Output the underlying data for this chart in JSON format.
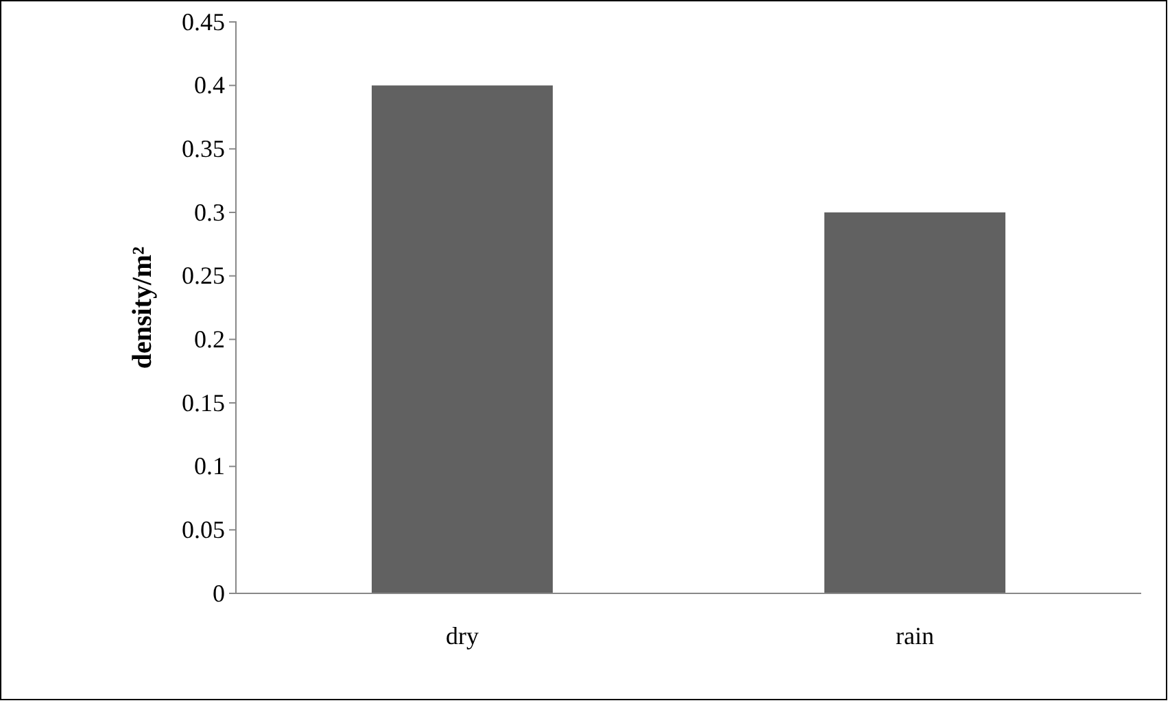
{
  "chart_data": {
    "type": "bar",
    "ylabel": "density/m²",
    "categories": [
      "dry",
      "rain"
    ],
    "values": [
      0.4,
      0.3
    ],
    "color": "#616161",
    "ylim": [
      0,
      0.45
    ],
    "yticks": [
      0,
      0.05,
      0.1,
      0.15,
      0.2,
      0.25,
      0.3,
      0.35,
      0.4,
      0.45
    ],
    "grid": false
  }
}
